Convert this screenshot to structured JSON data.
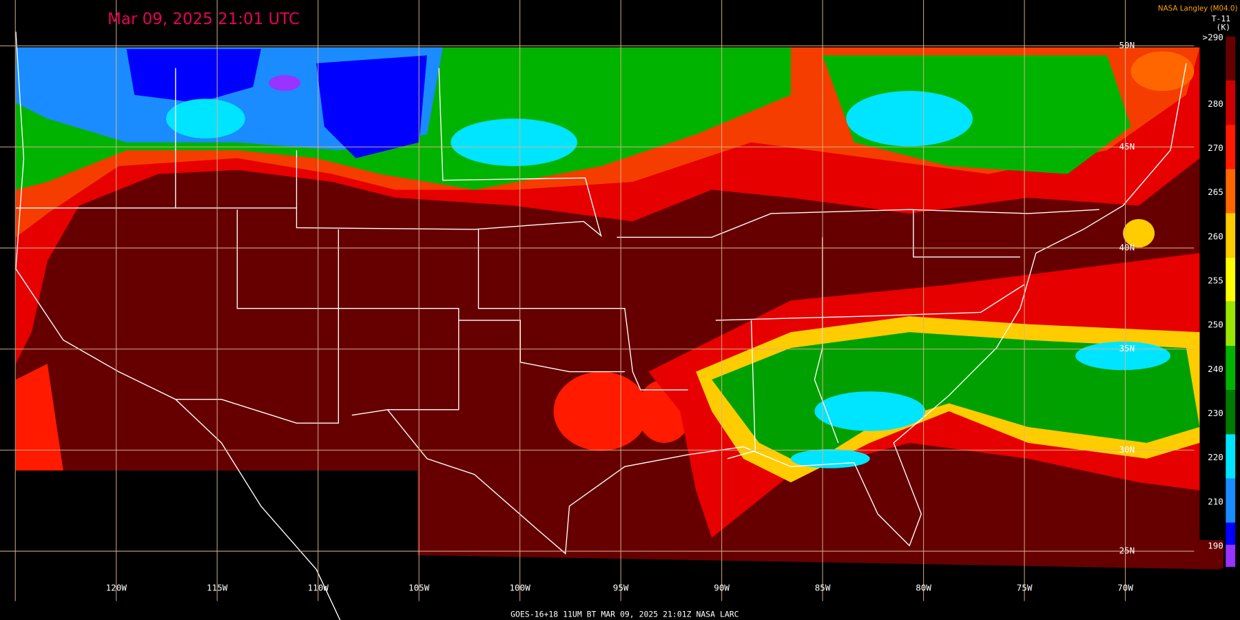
{
  "header": {
    "timestamp": "Mar 09, 2025 21:01 UTC",
    "credit": "NASA Langley (M04.0)"
  },
  "legend": {
    "title": "T-11",
    "unit": "(K)",
    "entries": [
      {
        "label": ">290",
        "color": "#660000"
      },
      {
        "label": "280",
        "color": "#cc0000"
      },
      {
        "label": "270",
        "color": "#ff1a00"
      },
      {
        "label": "265",
        "color": "#ff6600"
      },
      {
        "label": "260",
        "color": "#ffcc00"
      },
      {
        "label": "255",
        "color": "#ffff00"
      },
      {
        "label": "250",
        "color": "#99e600"
      },
      {
        "label": "240",
        "color": "#00b300"
      },
      {
        "label": "230",
        "color": "#007a00"
      },
      {
        "label": "220",
        "color": "#00e5ff"
      },
      {
        "label": "210",
        "color": "#1a8cff"
      },
      {
        "label": "190",
        "color": "#0000ff"
      }
    ],
    "bottom_color": "#9933ff"
  },
  "longitude_labels": [
    "120W",
    "115W",
    "110W",
    "105W",
    "100W",
    "95W",
    "90W",
    "85W",
    "80W",
    "75W",
    "70W"
  ],
  "latitude_labels": [
    "50N",
    "45N",
    "40N",
    "35N",
    "30N",
    "25N"
  ],
  "footer": "GOES-16+18  11UM BT   MAR 09, 2025 21:01Z   NASA LARC"
}
